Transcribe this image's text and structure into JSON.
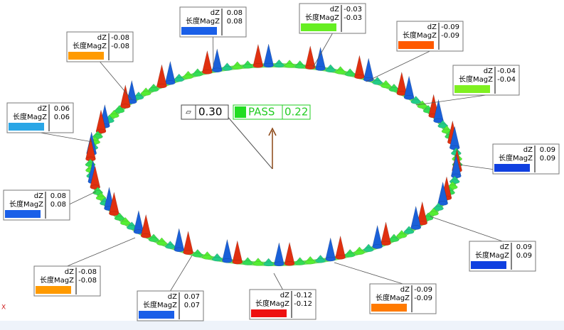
{
  "axis_label": "X",
  "flatness": {
    "symbol": "▱",
    "value": "0.30",
    "status": "PASS",
    "measured": "0.22"
  },
  "callouts": [
    {
      "name": "dZ",
      "value": "-0.08",
      "mag_name": "长度MagZ",
      "mag_value": "-0.08",
      "color": "#ff9a00"
    },
    {
      "name": "dZ",
      "value": "0.08",
      "mag_name": "长度MagZ",
      "mag_value": "0.08",
      "color": "#1a5fe8"
    },
    {
      "name": "dZ",
      "value": "-0.03",
      "mag_name": "长度MagZ",
      "mag_value": "-0.03",
      "color": "#66ee22"
    },
    {
      "name": "dZ",
      "value": "-0.09",
      "mag_name": "长度MagZ",
      "mag_value": "-0.09",
      "color": "#ff5a00"
    },
    {
      "name": "dZ",
      "value": "-0.04",
      "mag_name": "长度MagZ",
      "mag_value": "-0.04",
      "color": "#7ff020"
    },
    {
      "name": "dZ",
      "value": "0.09",
      "mag_name": "长度MagZ",
      "mag_value": "0.09",
      "color": "#1040e0"
    },
    {
      "name": "dZ",
      "value": "0.09",
      "mag_name": "长度MagZ",
      "mag_value": "0.09",
      "color": "#1040e0"
    },
    {
      "name": "dZ",
      "value": "-0.09",
      "mag_name": "长度MagZ",
      "mag_value": "-0.09",
      "color": "#ff7a00"
    },
    {
      "name": "dZ",
      "value": "-0.12",
      "mag_name": "长度MagZ",
      "mag_value": "-0.12",
      "color": "#ee1010"
    },
    {
      "name": "dZ",
      "value": "0.07",
      "mag_name": "长度MagZ",
      "mag_value": "0.07",
      "color": "#1a5fe8"
    },
    {
      "name": "dZ",
      "value": "-0.08",
      "mag_name": "长度MagZ",
      "mag_value": "-0.08",
      "color": "#ff9a00"
    },
    {
      "name": "dZ",
      "value": "0.08",
      "mag_name": "长度MagZ",
      "mag_value": "0.08",
      "color": "#1a5fe8"
    },
    {
      "name": "dZ",
      "value": "0.06",
      "mag_name": "长度MagZ",
      "mag_value": "0.06",
      "color": "#2aa6e6"
    }
  ]
}
